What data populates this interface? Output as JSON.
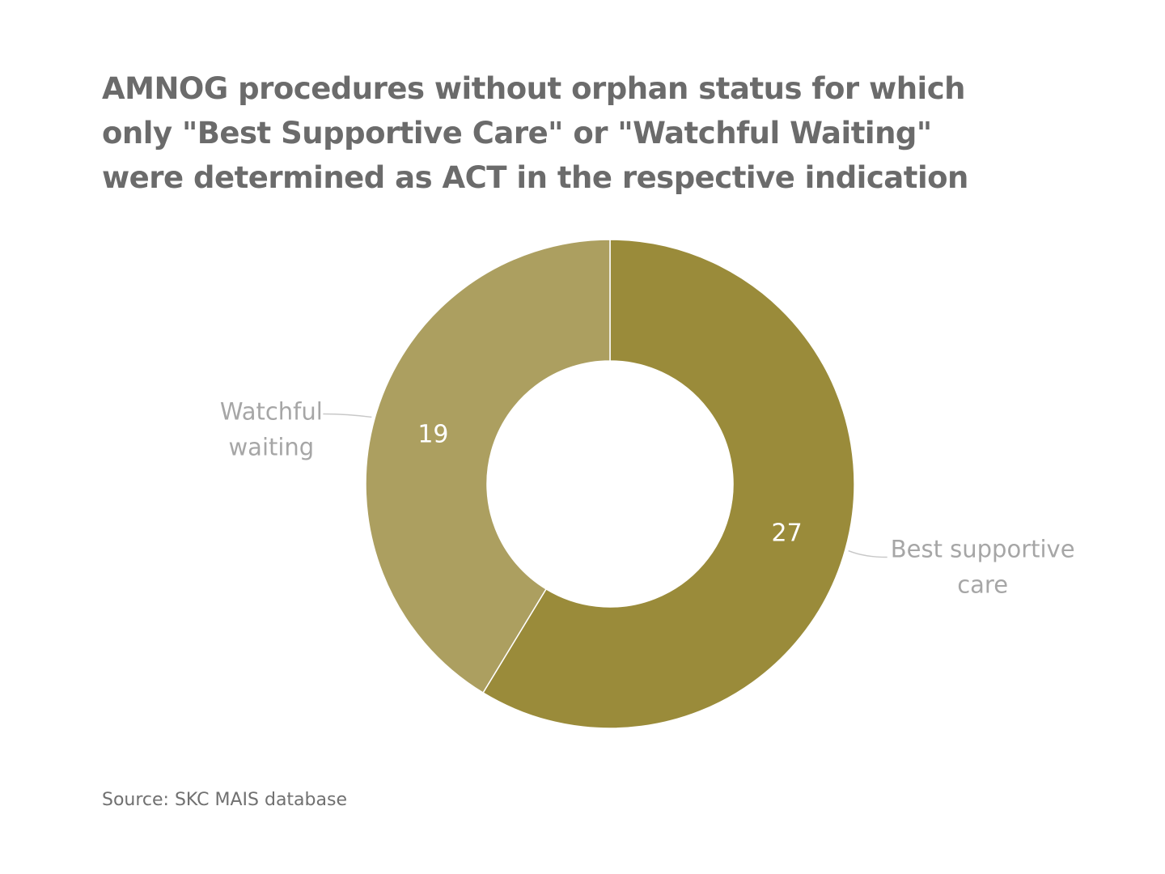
{
  "chart_data": {
    "type": "pie",
    "variant": "donut",
    "title": "AMNOG procedures without orphan status for which only \"Best Supportive Care\" or \"Watchful Waiting\" were determined as ACT in the respective indication",
    "categories": [
      "Best supportive care",
      "Watchful waiting"
    ],
    "label_lines": [
      [
        "Best supportive",
        "care"
      ],
      [
        "Watchful",
        "waiting"
      ]
    ],
    "values": [
      27,
      19
    ],
    "colors": [
      "#9a8b3a",
      "#ac9f60"
    ],
    "start_angle_deg": 0,
    "direction": "clockwise",
    "legend": "none",
    "data_labels": true
  },
  "source": "Source: SKC MAIS database"
}
